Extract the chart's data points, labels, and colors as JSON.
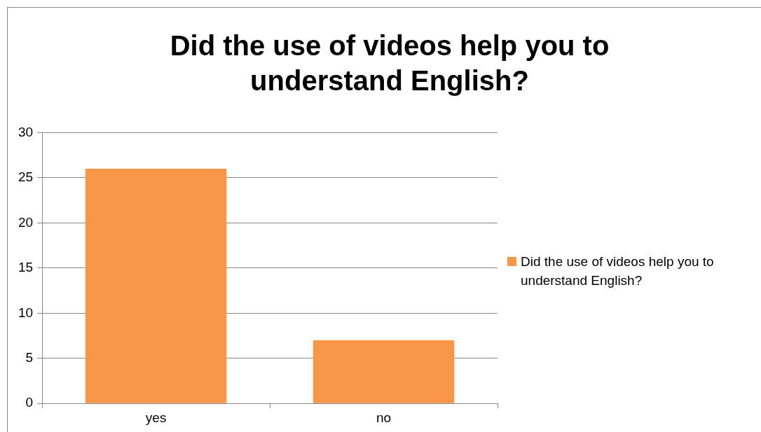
{
  "chart_data": {
    "type": "bar",
    "title": "Did the use of videos help you to understand English?",
    "categories": [
      "yes",
      "no"
    ],
    "series": [
      {
        "name": "Did the use of videos help you to understand English?",
        "color": "#f79646",
        "values": [
          26,
          7
        ]
      }
    ],
    "ylim": [
      0,
      30
    ],
    "yticks": [
      0,
      5,
      10,
      15,
      20,
      25,
      30
    ],
    "grid": "y",
    "legend": "right"
  }
}
